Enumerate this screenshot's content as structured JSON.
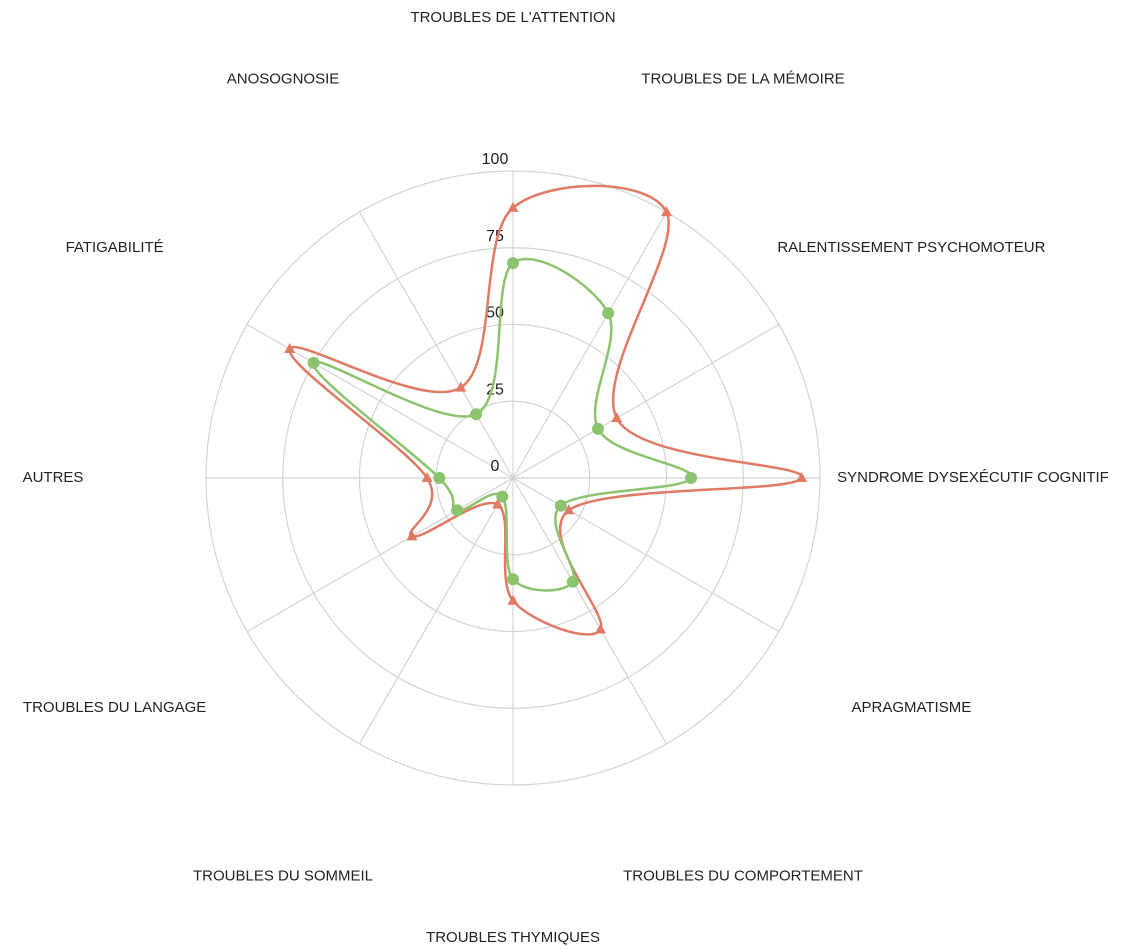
{
  "chart_data": {
    "type": "radar",
    "categories": [
      "TROUBLES DE L'ATTENTION",
      "TROUBLES DE LA MÉMOIRE",
      "RALENTISSEMENT PSYCHOMOTEUR",
      "SYNDROME DYSEXÉCUTIF COGNITIF",
      "APRAGMATISME",
      "TROUBLES DU COMPORTEMENT",
      "TROUBLES THYMIQUES",
      "TROUBLES DU SOMMEIL",
      "TROUBLES DU LANGAGE",
      "AUTRES",
      "FATIGABILITÉ",
      "ANOSOGNOSIE"
    ],
    "series": [
      {
        "color": "#e07a65",
        "marker": "triangle",
        "values": [
          88,
          100,
          39,
          94,
          21,
          57,
          40,
          10,
          38,
          28,
          84,
          34
        ]
      },
      {
        "color": "#8cc36e",
        "marker": "circle",
        "values": [
          70,
          62,
          32,
          58,
          18,
          39,
          33,
          7,
          21,
          24,
          75,
          24
        ]
      }
    ],
    "ylim": [
      0,
      100
    ],
    "yticks": [
      0,
      25,
      50,
      75,
      100
    ],
    "grid": true
  }
}
